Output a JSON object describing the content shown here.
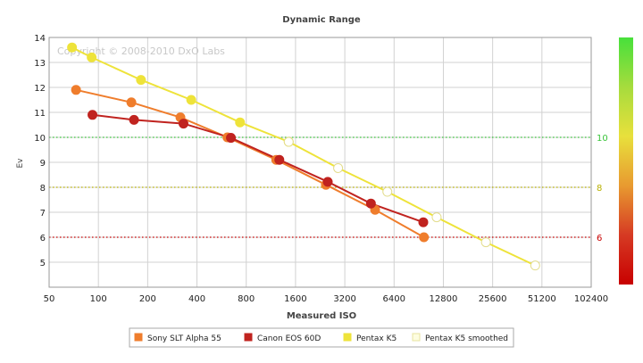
{
  "chart_data": {
    "type": "line",
    "title": "Dynamic Range",
    "xlabel": "Measured ISO",
    "ylabel": "Ev",
    "watermark": "Copyright © 2008-2010 DxO Labs",
    "x_scale": "log2",
    "x_ticks": [
      50,
      100,
      200,
      400,
      800,
      1600,
      3200,
      6400,
      12800,
      25600,
      51200,
      102400
    ],
    "x_tick_labels": [
      "50",
      "100",
      "200",
      "400",
      "800",
      "1600",
      "3200",
      "6400",
      "12800",
      "25600",
      "51200",
      "102400"
    ],
    "xlim": [
      50,
      102400
    ],
    "ylim": [
      4,
      14
    ],
    "y_ticks": [
      5,
      6,
      7,
      8,
      9,
      10,
      11,
      12,
      13,
      14
    ],
    "grid": true,
    "legend_position": "bottom",
    "reference_lines": [
      {
        "ev": 10,
        "label": "10",
        "color": "#39c439",
        "style": "dotted"
      },
      {
        "ev": 8,
        "label": "8",
        "color": "#b8b000",
        "style": "dotted"
      },
      {
        "ev": 6,
        "label": "6",
        "color": "#c80000",
        "style": "dotted"
      }
    ],
    "colorbar": [
      "#47e03b",
      "#a6dc3d",
      "#e8e03c",
      "#e89a30",
      "#d63a23",
      "#c80000"
    ],
    "series": [
      {
        "name": "Sony SLT Alpha 55",
        "color": "#ef7d2c",
        "marker": "filled",
        "x": [
          73,
          159,
          317,
          614,
          1220,
          2454,
          4901,
          9737
        ],
        "y": [
          11.9,
          11.4,
          10.8,
          10.0,
          9.1,
          8.1,
          7.1,
          6.0
        ]
      },
      {
        "name": "Canon EOS 60D",
        "color": "#c0231f",
        "marker": "filled",
        "x": [
          92,
          165,
          331,
          645,
          1274,
          2518,
          4621,
          9654
        ],
        "y": [
          10.9,
          10.7,
          10.55,
          9.98,
          9.1,
          8.22,
          7.35,
          6.6
        ]
      },
      {
        "name": "Pentax K5",
        "color": "#eee33a",
        "marker": "filled",
        "x": [
          69,
          91,
          182,
          369,
          733,
          1454
        ],
        "y": [
          13.6,
          13.2,
          12.3,
          11.5,
          10.6,
          9.82
        ]
      },
      {
        "name": "Pentax K5 smoothed",
        "color": "#eee33a",
        "marker": "open",
        "x": [
          1454,
          2912,
          5823,
          11648,
          23296,
          46593
        ],
        "y": [
          9.82,
          8.77,
          7.82,
          6.8,
          5.8,
          4.87
        ]
      }
    ]
  }
}
